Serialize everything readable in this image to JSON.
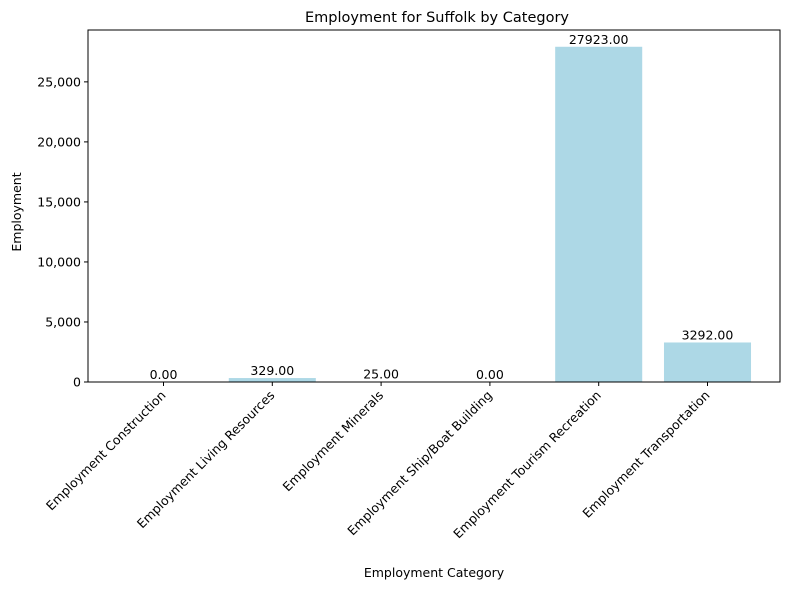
{
  "chart_data": {
    "type": "bar",
    "title": "Employment for Suffolk by Category",
    "xlabel": "Employment Category",
    "ylabel": "Employment",
    "categories": [
      "Employment Construction",
      "Employment Living Resources",
      "Employment Minerals",
      "Employment Ship/Boat Building",
      "Employment Tourism Recreation",
      "Employment Transportation"
    ],
    "values": [
      0,
      329,
      25,
      0,
      27923,
      3292
    ],
    "data_labels": [
      "0.00",
      "329.00",
      "25.00",
      "0.00",
      "27923.00",
      "3292.00"
    ],
    "ylim": [
      0,
      29320
    ],
    "yticks": [
      0,
      5000,
      10000,
      15000,
      20000,
      25000
    ],
    "ytick_labels": [
      "0",
      "5,000",
      "10,000",
      "15,000",
      "20,000",
      "25,000"
    ],
    "bar_color": "#add8e6",
    "grid": false
  }
}
